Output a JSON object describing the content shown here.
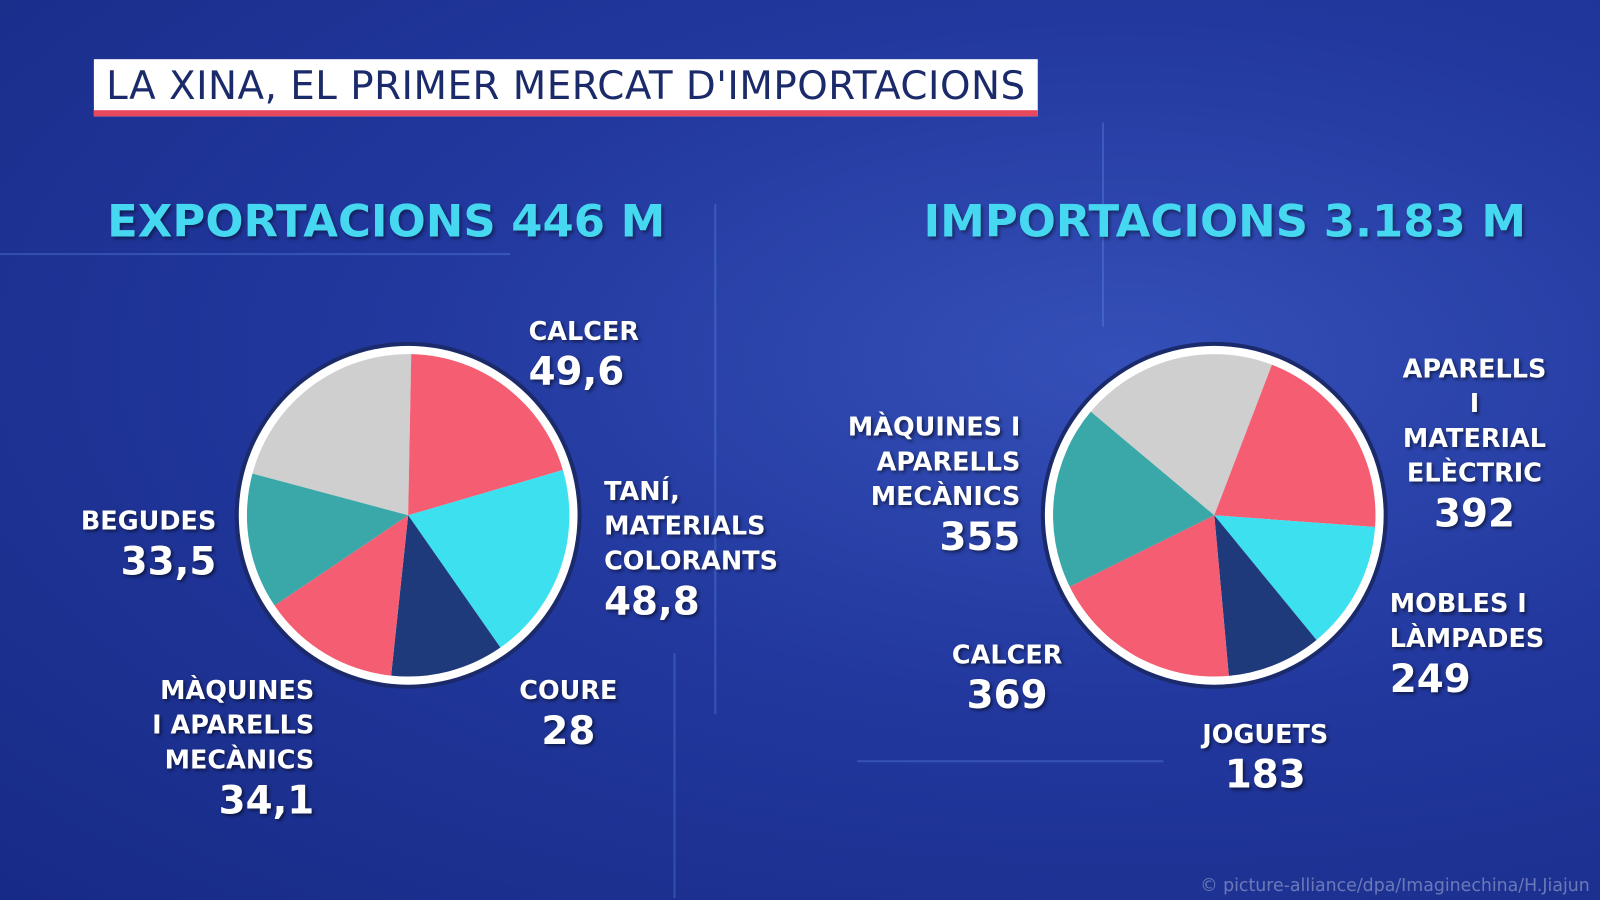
{
  "title": "LA XINA, EL PRIMER MERCAT D'IMPORTACIONS",
  "credit": "© picture-alliance/dpa/Imaginechina/H.Jiajun",
  "chart_data": [
    {
      "type": "pie",
      "title": "EXPORTACIONS 446 M",
      "categories": [
        null,
        "CALCER",
        "TANÍ,\nMATERIALS\nCOLORANTS",
        "COURE",
        "MÀQUINES\nI APARELLS\nMECÀNICS",
        "BEGUDES"
      ],
      "values": [
        52,
        49.6,
        48.8,
        28,
        34.1,
        33.5
      ],
      "value_labels": [
        null,
        "49,6",
        "48,8",
        "28",
        "34,1",
        "33,5"
      ],
      "colors": [
        "#cfcfcf",
        "#f45d72",
        "#3de0ef",
        "#1f3a7a",
        "#f45d72",
        "#3aa8a8"
      ]
    },
    {
      "type": "pie",
      "title": "IMPORTACIONS 3.183 M",
      "categories": [
        null,
        "APARELLS I\nMATERIAL\nELÈCTRIC",
        "MOBLES I\nLÀMPADES",
        "JOGUETS",
        "CALCER",
        "MÀQUINES I\nAPARELLS\nMECÀNICS"
      ],
      "values": [
        380,
        392,
        249,
        183,
        369,
        355
      ],
      "colors": [
        "#cfcfcf",
        "#f45d72",
        "#3de0ef",
        "#1f3a7a",
        "#f45d72",
        "#3aa8a8"
      ]
    }
  ]
}
